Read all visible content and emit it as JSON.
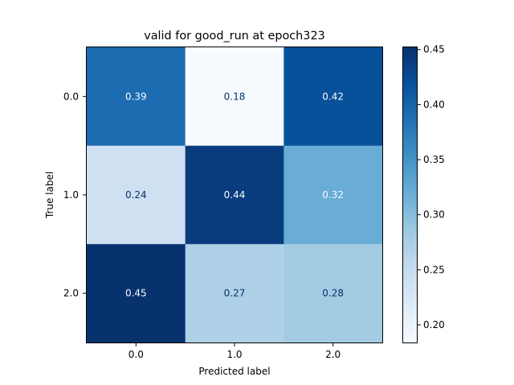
{
  "chart_data": {
    "type": "heatmap",
    "title": "valid for good_run at epoch323",
    "xlabel": "Predicted label",
    "ylabel": "True label",
    "x_categories": [
      "0.0",
      "1.0",
      "2.0"
    ],
    "y_categories": [
      "0.0",
      "1.0",
      "2.0"
    ],
    "values": [
      [
        0.39,
        0.18,
        0.42
      ],
      [
        0.24,
        0.44,
        0.32
      ],
      [
        0.45,
        0.27,
        0.28
      ]
    ],
    "cell_labels": [
      [
        "0.39",
        "0.18",
        "0.42"
      ],
      [
        "0.24",
        "0.44",
        "0.32"
      ],
      [
        "0.45",
        "0.27",
        "0.28"
      ]
    ],
    "colormap": "Blues",
    "colorbar": {
      "range": [
        0.184,
        0.452
      ],
      "ticks": [
        0.2,
        0.25,
        0.3,
        0.35,
        0.4,
        0.45
      ],
      "tick_labels": [
        "0.20",
        "0.25",
        "0.30",
        "0.35",
        "0.40",
        "0.45"
      ]
    },
    "grid": false
  }
}
